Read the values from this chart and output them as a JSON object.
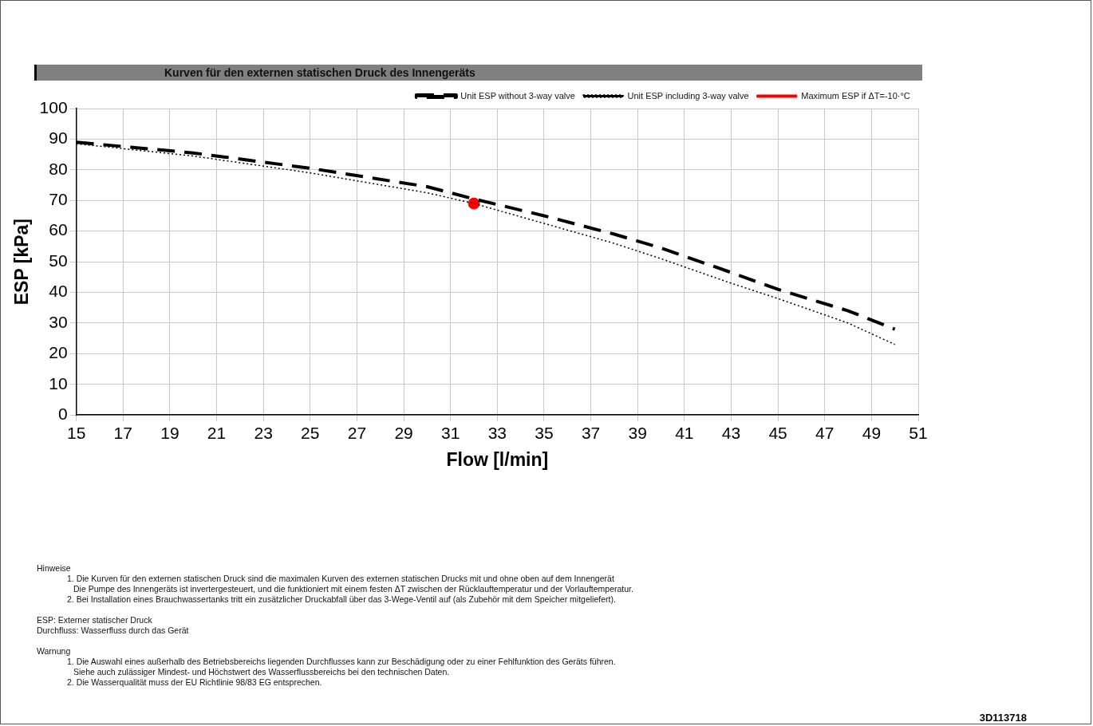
{
  "chart_data": {
    "type": "line",
    "title": "Kurven für den externen statischen Druck des Innengeräts",
    "xlabel": "Flow [l/min]",
    "ylabel": "ESP [kPa]",
    "xlim": [
      15,
      51
    ],
    "xticks": [
      15,
      17,
      19,
      21,
      23,
      25,
      27,
      29,
      31,
      33,
      35,
      37,
      39,
      41,
      43,
      45,
      47,
      49,
      51
    ],
    "ylim": [
      0,
      100
    ],
    "yticks": [
      0,
      10,
      20,
      30,
      40,
      50,
      60,
      70,
      80,
      90,
      100
    ],
    "grid": true,
    "legend": "top right",
    "series": [
      {
        "name": "Unit ESP without 3-way valve",
        "color": "#000000",
        "line_style": "dashed",
        "marker": "none",
        "x": [
          15,
          20,
          25,
          30,
          32,
          35,
          38,
          40,
          43,
          45,
          48,
          50
        ],
        "values": [
          89,
          85.5,
          80.5,
          74.5,
          70.5,
          65,
          59,
          54.5,
          46.5,
          41,
          34,
          28
        ]
      },
      {
        "name": "Unit ESP including 3-way valve",
        "color": "#000000",
        "line_style": "dotted",
        "marker": "none",
        "x": [
          15,
          20,
          25,
          30,
          32,
          35,
          38,
          40,
          43,
          45,
          48,
          50
        ],
        "values": [
          88.5,
          84.5,
          79,
          72.5,
          69,
          62.5,
          56,
          51,
          43,
          38,
          30,
          23
        ]
      },
      {
        "name": "Maximum ESP if ΔT=-10·°C",
        "type": "scatter",
        "color": "#ff0000",
        "marker": "circle",
        "x": [
          32
        ],
        "values": [
          69
        ]
      }
    ],
    "annotations": [
      "Hinweise",
      "1. Die Kurven für den externen statischen Druck sind die maximalen Kurven des externen statischen Drucks mit und ohne oben auf dem Innengerät",
      "Die Pumpe des Innengeräts ist invertergesteuert, und die funktioniert mit einem festen ΔT zwischen der Rücklauftemperatur und der Vorlauftemperatur.",
      "2. Bei Installation eines Brauchwassertanks tritt ein zusätzlicher Druckabfall über das 3-Wege-Ventil auf (als Zubehör mit dem Speicher mitgeliefert).",
      "ESP: Externer statischer Druck",
      "Durchfluss: Wasserfluss durch das Gerät",
      "Warnung",
      "1. Die Auswahl eines außerhalb des Betriebsbereichs liegenden Durchflusses kann zur Beschädigung oder zu einer Fehlfunktion des Geräts führen.",
      "Siehe auch zulässiger Mindest- und Höchstwert des Wasserflussbereichs bei den technischen Daten.",
      "2. Die Wasserqualität muss der EU Richtlinie 98/83 EG entsprechen.",
      "3D113718"
    ]
  }
}
